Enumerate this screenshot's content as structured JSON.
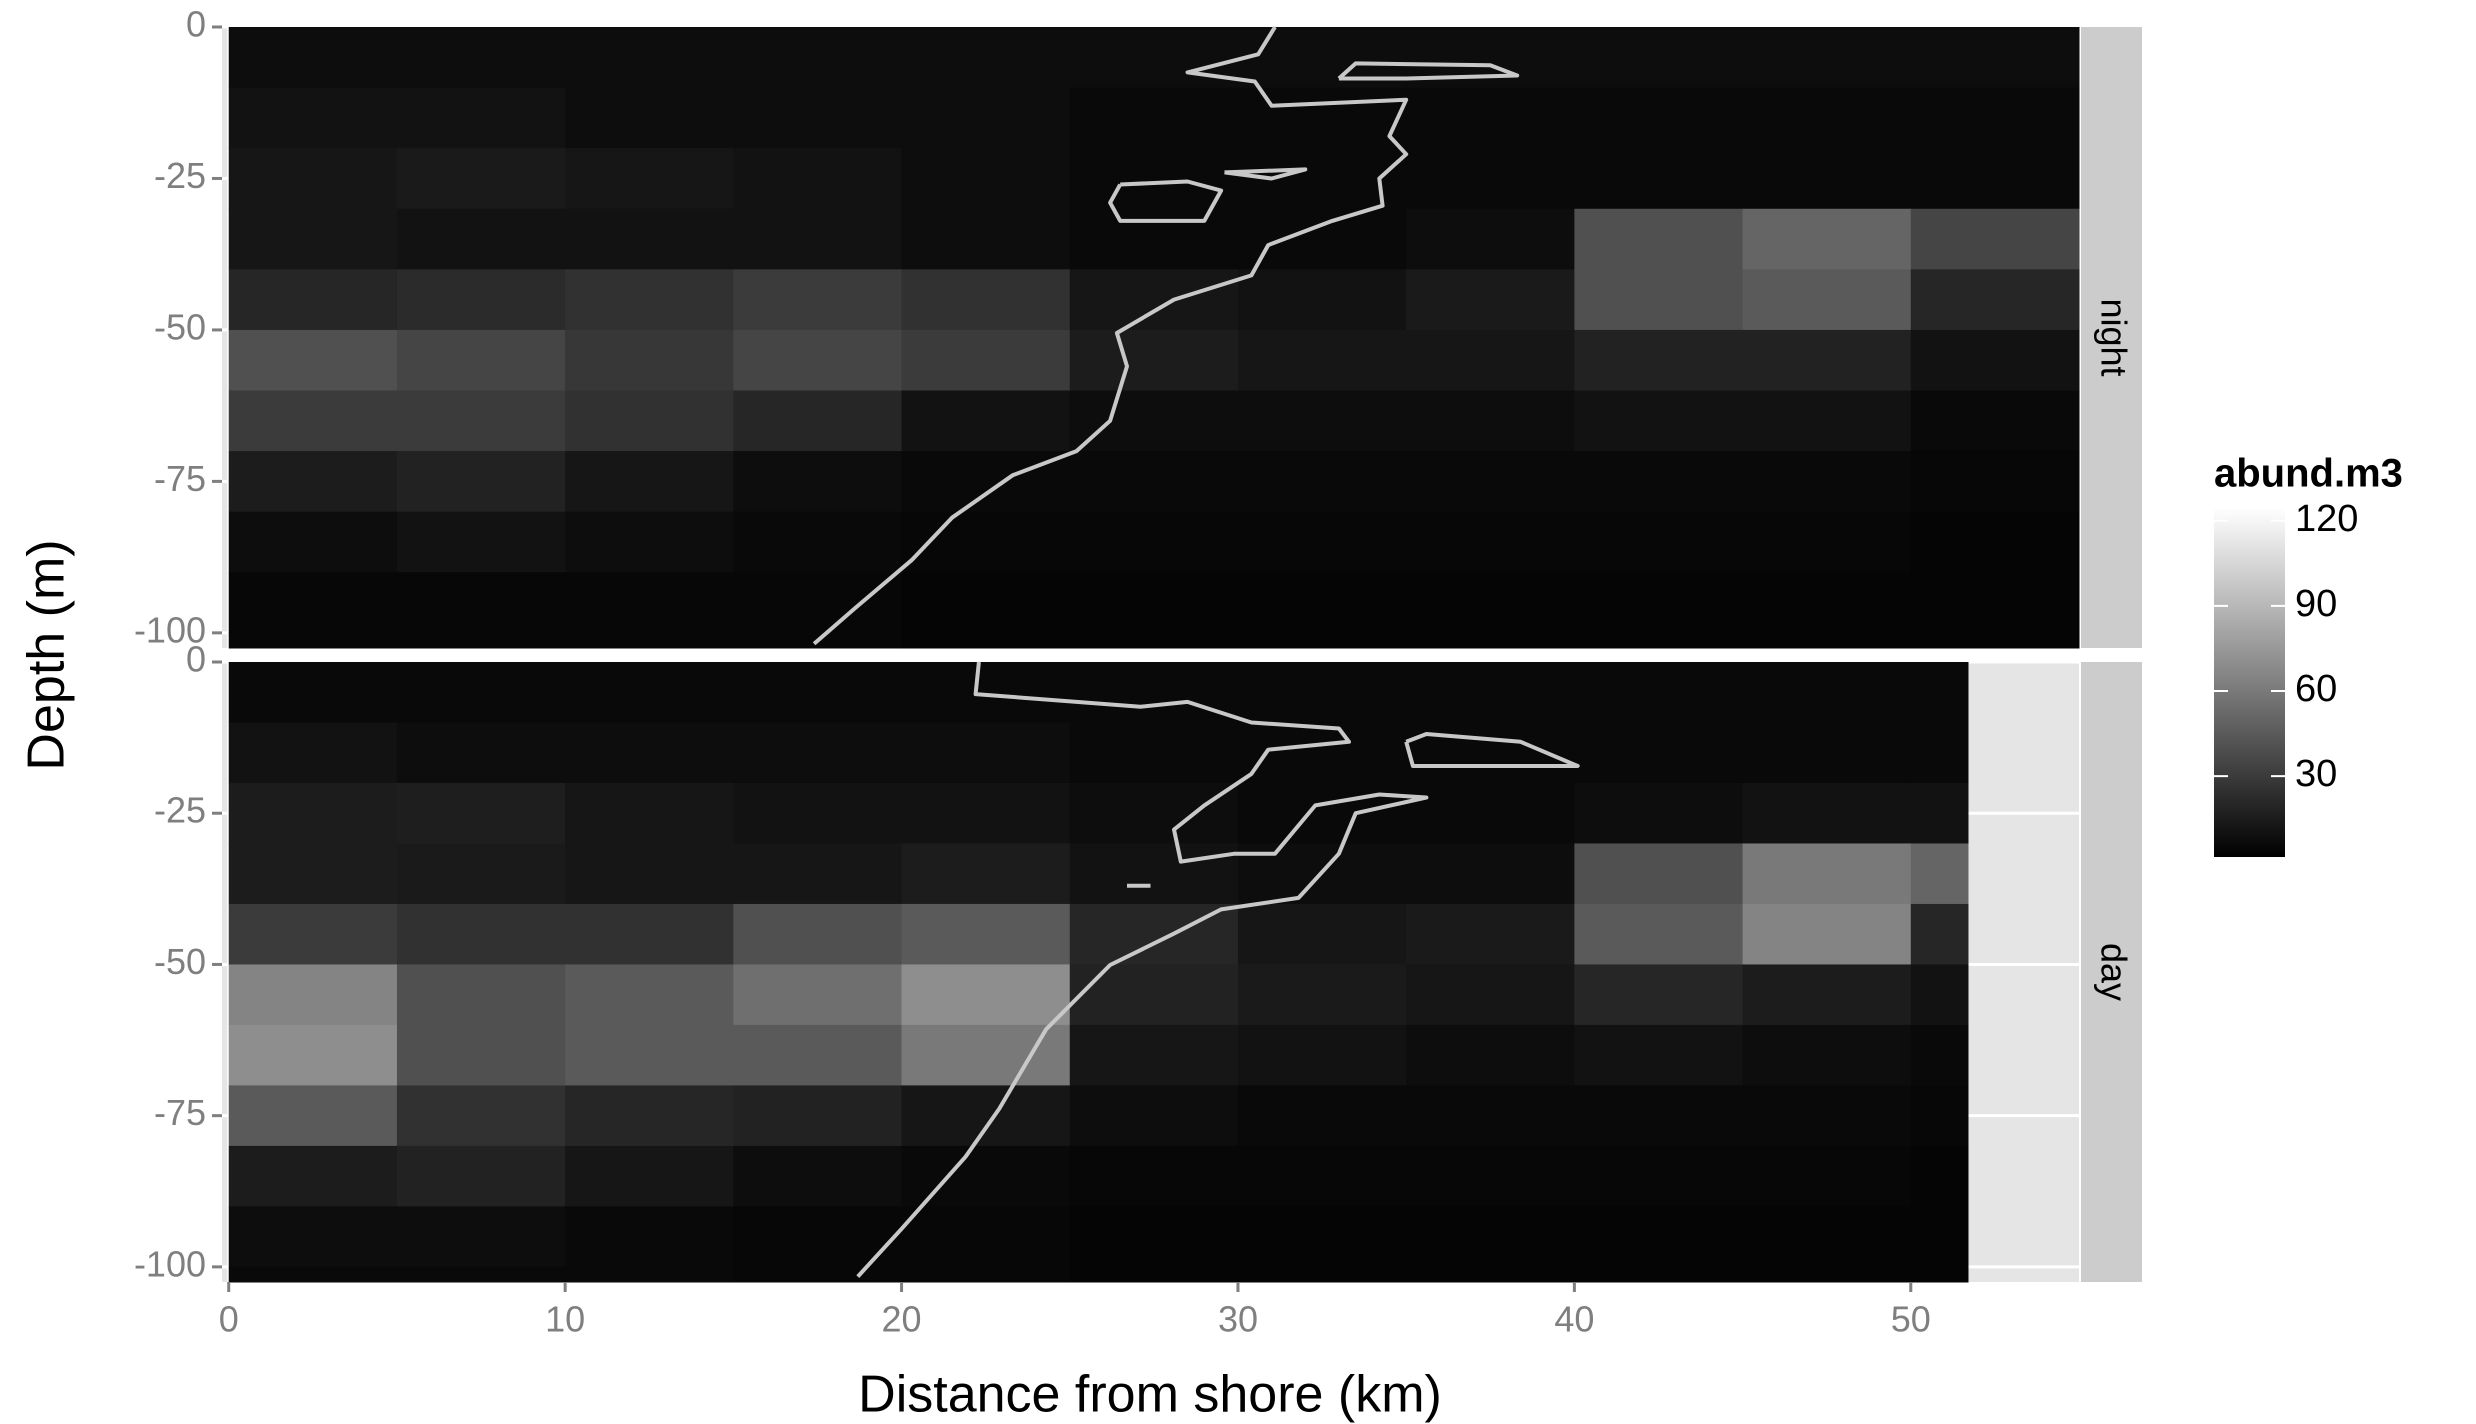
{
  "chart_data": {
    "type": "heatmap",
    "x_label": "Distance from shore (km)",
    "y_label": "Depth (m)",
    "xlim": [
      -0.2,
      55
    ],
    "ylim": [
      -102.5,
      0
    ],
    "xticks": [
      0,
      10,
      20,
      30,
      40,
      50
    ],
    "yticks": [
      0,
      -25,
      -50,
      -75,
      -100
    ],
    "grid": true,
    "y_bins": [
      0,
      -10,
      -20,
      -30,
      -40,
      -50,
      -60,
      -70,
      -80,
      -90,
      -100,
      -102.5
    ],
    "contour_color": "#c8c8c8",
    "facets": [
      {
        "name": "night",
        "x_bins": [
          0,
          5,
          10,
          15,
          20,
          25,
          30,
          35,
          40,
          45,
          50,
          55
        ],
        "values": [
          [
            8,
            8,
            8,
            8,
            8,
            8,
            8,
            8,
            8,
            8,
            8
          ],
          [
            10,
            10,
            8,
            8,
            8,
            6,
            6,
            6,
            6,
            6,
            6
          ],
          [
            12,
            14,
            12,
            10,
            8,
            6,
            6,
            6,
            6,
            6,
            6
          ],
          [
            12,
            10,
            10,
            10,
            8,
            6,
            6,
            8,
            40,
            50,
            35
          ],
          [
            20,
            22,
            25,
            30,
            25,
            12,
            10,
            14,
            40,
            45,
            20
          ],
          [
            40,
            35,
            28,
            35,
            30,
            15,
            12,
            12,
            18,
            18,
            10
          ],
          [
            30,
            30,
            25,
            20,
            10,
            8,
            8,
            8,
            10,
            10,
            6
          ],
          [
            15,
            18,
            12,
            8,
            6,
            6,
            6,
            6,
            6,
            6,
            5
          ],
          [
            8,
            10,
            8,
            6,
            5,
            5,
            5,
            5,
            5,
            5,
            4
          ],
          [
            5,
            5,
            5,
            5,
            4,
            4,
            4,
            4,
            4,
            4,
            4
          ],
          [
            5,
            5,
            5,
            5,
            4,
            4,
            4,
            4,
            4,
            4,
            4
          ]
        ],
        "contour": {
          "x": [
            31.1,
            30.6,
            28.5,
            30.5,
            31,
            35,
            34.5,
            35,
            34.2,
            34.3,
            32.8,
            30.9,
            30.4,
            28.1,
            26.4,
            26.7,
            26.2,
            25.2,
            23.3,
            21.5,
            20.3,
            18.6,
            17.4,
            null,
            33,
            33.5,
            37.5,
            38.3,
            35,
            33,
            null,
            26.5,
            28.5,
            29.5,
            29,
            26.5,
            26.2,
            26.5,
            null,
            29.6,
            32,
            31,
            29.6
          ],
          "y": [
            0,
            -4.5,
            -7.5,
            -9,
            -13,
            -12,
            -18,
            -21,
            -25,
            -29.5,
            -32,
            -36,
            -41,
            -45,
            -50.5,
            -56,
            -65,
            -70,
            -74,
            -81,
            -88,
            -96,
            -101.8,
            null,
            -8.5,
            -6,
            -6.3,
            -8,
            -8.5,
            -8.5,
            null,
            -26,
            -25.5,
            -27,
            -32,
            -32,
            -29,
            -26,
            null,
            -24,
            -23.5,
            -25,
            -24
          ]
        }
      },
      {
        "name": "day",
        "x_bins": [
          0,
          5,
          10,
          15,
          20,
          25,
          30,
          35,
          40,
          45,
          50,
          51.7
        ],
        "values": [
          [
            6,
            6,
            6,
            6,
            6,
            6,
            6,
            6,
            6,
            6,
            6
          ],
          [
            10,
            8,
            8,
            8,
            8,
            6,
            6,
            6,
            6,
            6,
            6
          ],
          [
            15,
            16,
            12,
            10,
            10,
            8,
            6,
            6,
            8,
            10,
            10
          ],
          [
            15,
            14,
            12,
            12,
            15,
            10,
            8,
            8,
            40,
            60,
            50
          ],
          [
            30,
            25,
            25,
            40,
            45,
            20,
            12,
            14,
            45,
            65,
            20
          ],
          [
            65,
            40,
            45,
            55,
            70,
            18,
            14,
            12,
            20,
            15,
            10
          ],
          [
            70,
            40,
            45,
            45,
            60,
            12,
            10,
            8,
            10,
            8,
            6
          ],
          [
            45,
            25,
            20,
            18,
            12,
            8,
            6,
            6,
            6,
            6,
            5
          ],
          [
            15,
            18,
            12,
            8,
            6,
            5,
            5,
            5,
            5,
            5,
            4
          ],
          [
            8,
            8,
            6,
            5,
            5,
            4,
            4,
            4,
            4,
            4,
            4
          ],
          [
            6,
            6,
            6,
            5,
            5,
            4,
            4,
            4,
            4,
            4,
            4
          ]
        ],
        "contour": {
          "x": [
            18.7,
            20.0,
            21.9,
            22.9,
            24.3,
            26.2,
            28.1,
            29.5,
            31.8,
            33,
            33.5,
            35.6,
            34.2,
            32.3,
            31.1,
            29.9,
            28.3,
            28.1,
            29,
            30.4,
            30.9,
            33.3,
            33.0,
            30.4,
            28.5,
            27.1,
            22.2,
            22.3,
            null,
            35.0,
            35.6,
            38.4,
            40.1,
            35.2,
            35.0,
            null,
            26.7,
            27.4
          ],
          "y": [
            -101.6,
            -93.7,
            -81.8,
            -73.9,
            -60.7,
            -50.1,
            -44.9,
            -40.9,
            -39,
            -31.7,
            -25,
            -22.4,
            -21.9,
            -23.7,
            -31.7,
            -31.7,
            -33,
            -27.7,
            -23.7,
            -18.5,
            -14.5,
            -13.2,
            -11,
            -10,
            -6.6,
            -7.4,
            -5.3,
            0,
            null,
            -13.2,
            -11.9,
            -13.2,
            -17.2,
            -17.2,
            -13.2,
            null,
            -37,
            -37
          ]
        }
      }
    ],
    "colorbar": {
      "title": "abund.m3",
      "lim": [
        1.5,
        124.5
      ],
      "ticks": [
        30,
        60,
        90,
        120
      ],
      "low_color": "#000000",
      "high_color": "#ffffff"
    }
  }
}
